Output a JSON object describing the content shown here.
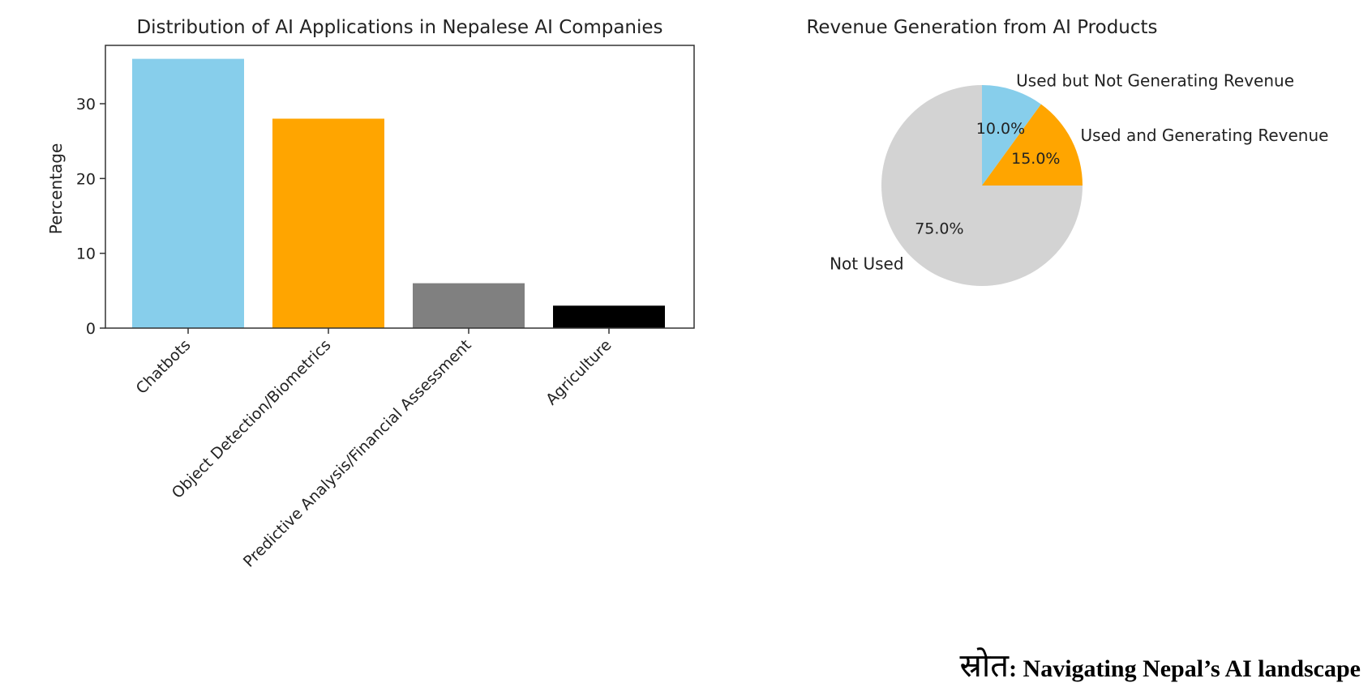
{
  "chart_data": [
    {
      "type": "bar",
      "title": "Distribution of AI Applications in Nepalese AI Companies",
      "xlabel": "",
      "ylabel": "Percentage",
      "categories": [
        "Chatbots",
        "Object Detection/Biometrics",
        "Predictive Analysis/Financial Assessment",
        "Agriculture"
      ],
      "values": [
        36,
        28,
        6,
        3
      ],
      "colors": [
        "#87ceeb",
        "#ffa500",
        "#808080",
        "#000000"
      ],
      "ylim": [
        0,
        37.8
      ],
      "yticks": [
        0,
        10,
        20,
        30
      ],
      "grid": false
    },
    {
      "type": "pie",
      "title": "Revenue Generation from AI Products",
      "labels": [
        "Used but Not Generating Revenue",
        "Used and Generating Revenue",
        "Not Used"
      ],
      "values": [
        10,
        15,
        75
      ],
      "value_labels": [
        "10.0%",
        "15.0%",
        "75.0%"
      ],
      "colors": [
        "#87ceeb",
        "#ffa500",
        "#d3d3d3"
      ],
      "start_angle": 90,
      "direction": "clockwise"
    }
  ],
  "source": {
    "prefix": "स्रोत",
    "text": ": Navigating Nepal’s AI landscape"
  }
}
